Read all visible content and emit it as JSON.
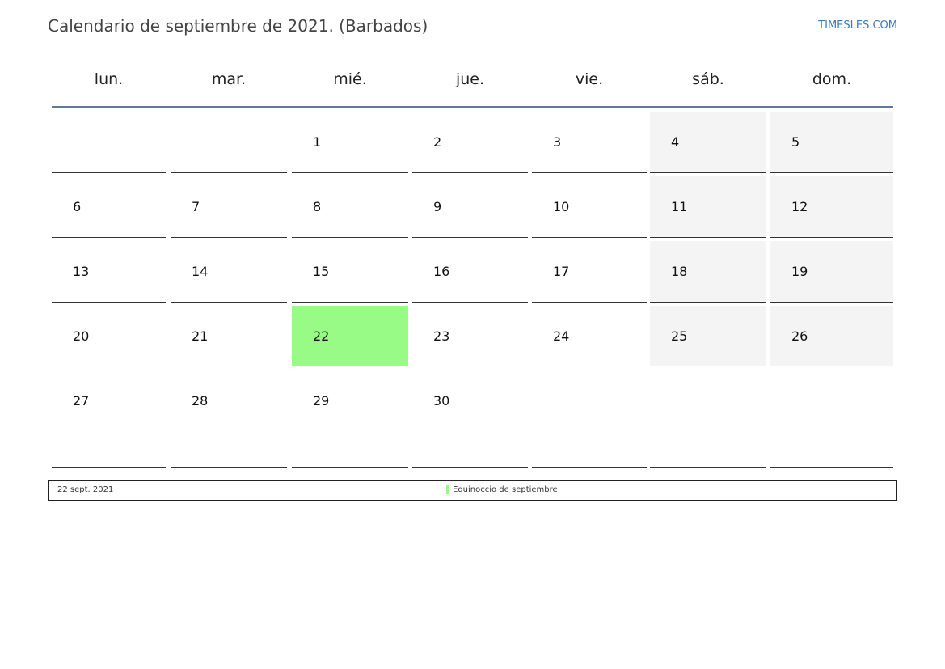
{
  "header": {
    "title": "Calendario de septiembre de 2021. (Barbados)",
    "site": "TIMESLES.COM"
  },
  "weekdays": [
    "lun.",
    "mar.",
    "mié.",
    "jue.",
    "vie.",
    "sáb.",
    "dom."
  ],
  "weeks": [
    [
      null,
      null,
      1,
      2,
      3,
      4,
      5
    ],
    [
      6,
      7,
      8,
      9,
      10,
      11,
      12
    ],
    [
      13,
      14,
      15,
      16,
      17,
      18,
      19
    ],
    [
      20,
      21,
      22,
      23,
      24,
      25,
      26
    ],
    [
      27,
      28,
      29,
      30,
      null,
      null,
      null
    ]
  ],
  "holiday_day": 22,
  "legend": {
    "date": "22 sept. 2021",
    "label": "Equinoccio de septiembre",
    "color": "#98fb86"
  }
}
